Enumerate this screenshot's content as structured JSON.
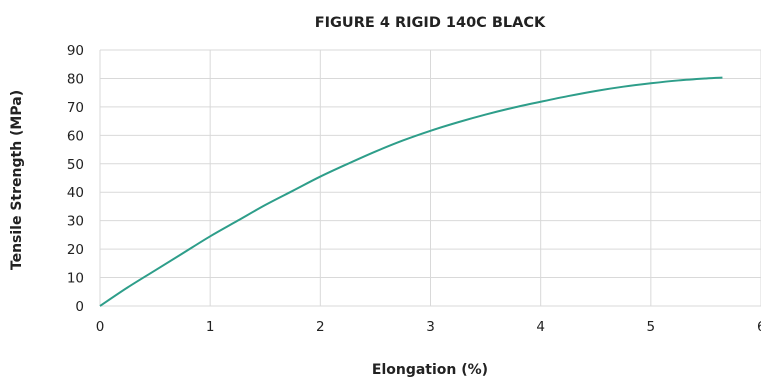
{
  "chart_data": {
    "type": "line",
    "title": "FIGURE 4 RIGID 140C BLACK",
    "xlabel": "Elongation (%)",
    "ylabel": "Tensile Strength (MPa)",
    "xlim": [
      0,
      6
    ],
    "ylim": [
      0,
      90
    ],
    "xticks": [
      "0",
      "1",
      "2",
      "3",
      "4",
      "5",
      "6"
    ],
    "yticks": [
      "0",
      "10",
      "20",
      "30",
      "40",
      "50",
      "60",
      "70",
      "80",
      "90"
    ],
    "grid": true,
    "legend": "none",
    "series": [
      {
        "color": "#2e9e8a",
        "x": [
          0,
          0.25,
          0.5,
          0.75,
          1.0,
          1.25,
          1.5,
          1.75,
          2.0,
          2.25,
          2.5,
          2.75,
          3.0,
          3.25,
          3.5,
          3.75,
          4.0,
          4.25,
          4.5,
          4.75,
          5.0,
          5.25,
          5.5,
          5.65
        ],
        "y": [
          0,
          6.5,
          12.5,
          18.5,
          24.5,
          30,
          35.5,
          40.5,
          45.5,
          50,
          54.3,
          58.2,
          61.6,
          64.6,
          67.3,
          69.7,
          71.8,
          73.8,
          75.6,
          77.1,
          78.3,
          79.3,
          80.0,
          80.3
        ]
      }
    ]
  }
}
